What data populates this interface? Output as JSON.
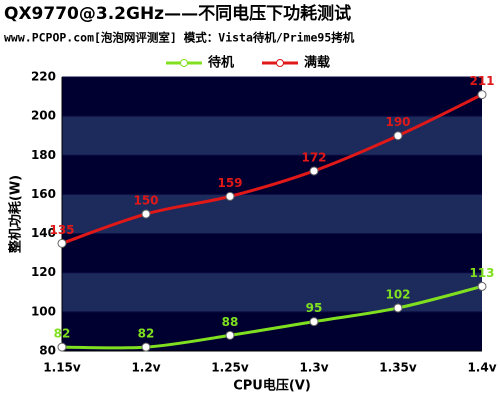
{
  "chart_data": {
    "type": "line",
    "title": "QX9770@3.2GHz——不同电压下功耗测试",
    "subtitle": "www.PCPOP.com[泡泡网评测室] 模式：Vista待机/Prime95拷机",
    "x_label": "CPU电压(V)",
    "y_label": "整机功耗(W)",
    "categories": [
      "1.15v",
      "1.2v",
      "1.25v",
      "1.3v",
      "1.35v",
      "1.4v"
    ],
    "series": [
      {
        "name": "待机",
        "color": "#80e020",
        "values": [
          82,
          82,
          88,
          95,
          102,
          113
        ]
      },
      {
        "name": "满载",
        "color": "#e01818",
        "values": [
          135,
          150,
          159,
          172,
          190,
          211
        ]
      }
    ],
    "ylim": [
      80,
      220
    ],
    "yticks": [
      80,
      100,
      120,
      140,
      160,
      180,
      200,
      220
    ],
    "grid": true,
    "legend": "top"
  }
}
